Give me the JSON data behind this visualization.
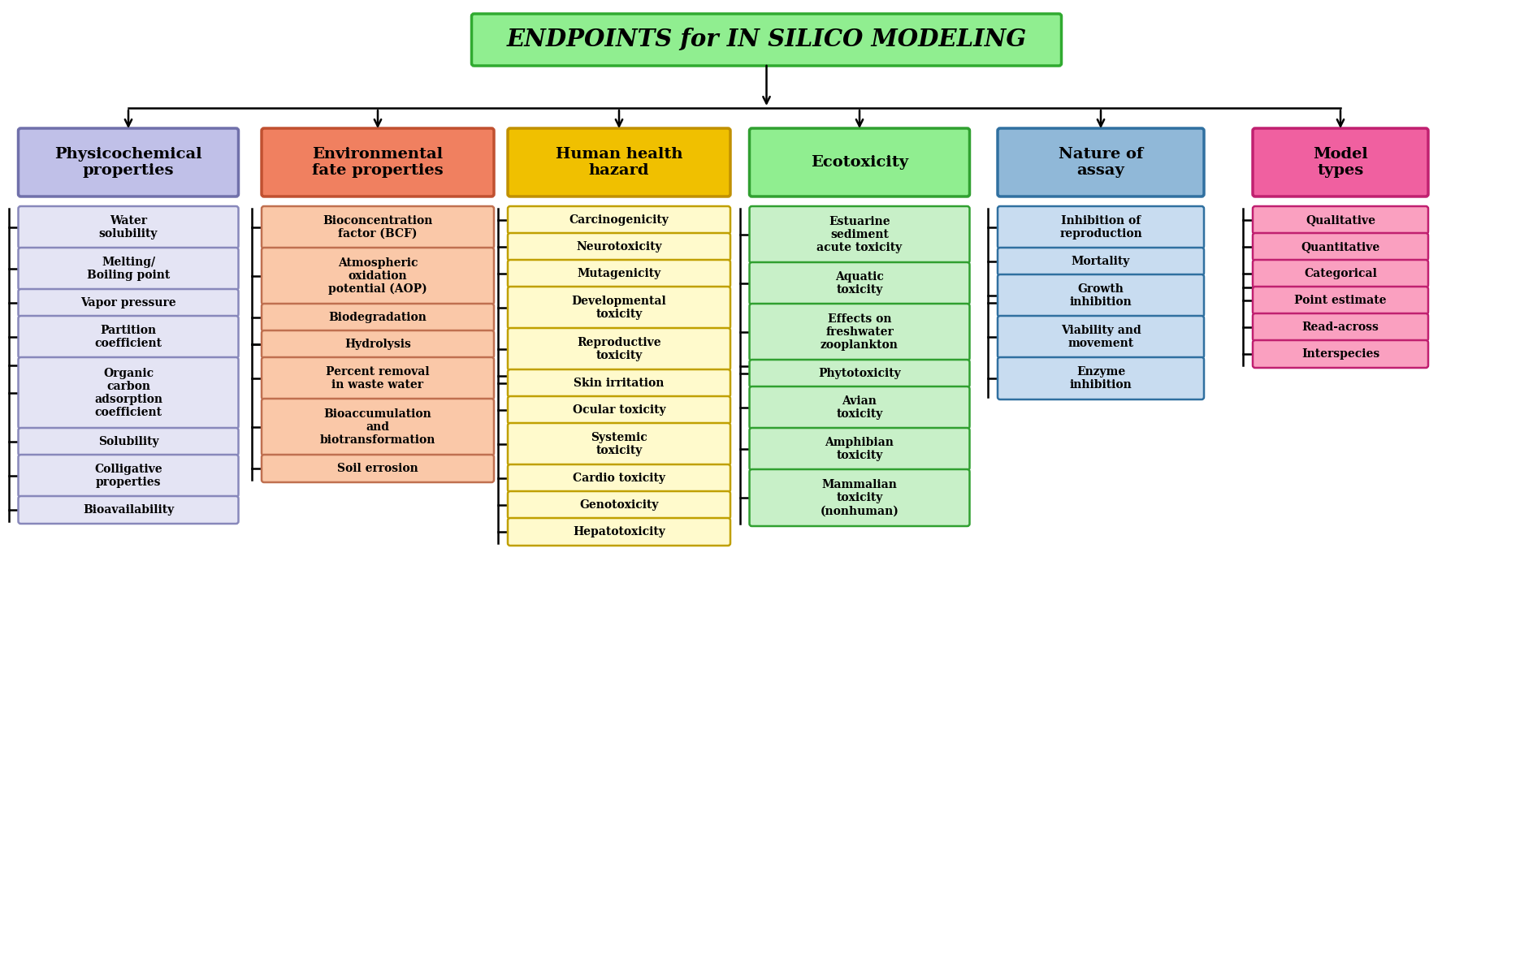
{
  "title": "ENDPOINTS for IN SILICO MODELING",
  "title_bg": "#90EE90",
  "title_border": "#30AA30",
  "title_fontsize": 20,
  "columns": [
    {
      "header": "Physicochemical\nproperties",
      "header_color": "#C0C0E8",
      "header_border": "#7070AA",
      "items_color": "#E4E4F4",
      "items_border": "#8888BB",
      "items": [
        "Water\nsolubility",
        "Melting/\nBoiling point",
        "Vapor pressure",
        "Partition\ncoefficient",
        "Organic\ncarbon\nadsorption\ncoefficient",
        "Solubility",
        "Colligative\nproperties",
        "Bioavailability"
      ]
    },
    {
      "header": "Environmental\nfate properties",
      "header_color": "#F08060",
      "header_border": "#C05030",
      "items_color": "#FAC8A8",
      "items_border": "#C07050",
      "items": [
        "Bioconcentration\nfactor (BCF)",
        "Atmospheric\noxidation\npotential (AOP)",
        "Biodegradation",
        "Hydrolysis",
        "Percent removal\nin waste water",
        "Bioaccumulation\nand\nbiotransformation",
        "Soil errosion"
      ]
    },
    {
      "header": "Human health\nhazard",
      "header_color": "#F0C000",
      "header_border": "#C09000",
      "items_color": "#FFFACC",
      "items_border": "#C0A000",
      "items": [
        "Carcinogenicity",
        "Neurotoxicity",
        "Mutagenicity",
        "Developmental\ntoxicity",
        "Reproductive\ntoxicity",
        "Skin irritation",
        "Ocular toxicity",
        "Systemic\ntoxicity",
        "Cardio toxicity",
        "Genotoxicity",
        "Hepatotoxicity"
      ]
    },
    {
      "header": "Ecotoxicity",
      "header_color": "#90EE90",
      "header_border": "#30A030",
      "items_color": "#C8F0C8",
      "items_border": "#30A030",
      "items": [
        "Estuarine\nsediment\nacute toxicity",
        "Aquatic\ntoxicity",
        "Effects on\nfreshwater\nzooplankton",
        "Phytotoxicity",
        "Avian\ntoxicity",
        "Amphibian\ntoxicity",
        "Mammalian\ntoxicity\n(nonhuman)"
      ]
    },
    {
      "header": "Nature of\nassay",
      "header_color": "#90B8D8",
      "header_border": "#3070A0",
      "items_color": "#C8DCF0",
      "items_border": "#3070A0",
      "items": [
        "Inhibition of\nreproduction",
        "Mortality",
        "Growth\ninhibition",
        "Viability and\nmovement",
        "Enzyme\ninhibition"
      ]
    },
    {
      "header": "Model\ntypes",
      "header_color": "#F060A0",
      "header_border": "#C02070",
      "items_color": "#FAA0C0",
      "items_border": "#C02070",
      "items": [
        "Qualitative",
        "Quantitative",
        "Categorical",
        "Point estimate",
        "Read-across",
        "Interspecies"
      ]
    }
  ]
}
